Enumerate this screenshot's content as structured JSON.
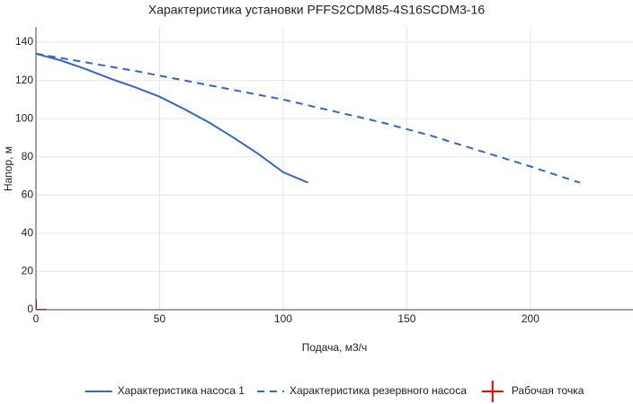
{
  "chart_data": {
    "type": "line",
    "title": "Характеристика установки PFFS2CDM85-4S16SCDM3-16",
    "x_label": "Подача, м3/ч",
    "y_label": "Напор, м",
    "xlim": [
      0,
      241.5
    ],
    "ylim": [
      0,
      148
    ],
    "xticks": [
      0,
      50,
      100,
      150,
      200
    ],
    "yticks": [
      0,
      20,
      40,
      60,
      80,
      100,
      120,
      140
    ],
    "grid": true,
    "legend": "bottom",
    "series": [
      {
        "name": "Характеристика насоса 1",
        "color": "#3366cc",
        "dash": "solid",
        "x": [
          0,
          10,
          20,
          30,
          40,
          50,
          60,
          70,
          80,
          90,
          100,
          110
        ],
        "values": [
          134,
          130.5,
          126,
          121,
          116.5,
          111.5,
          105,
          98,
          90,
          81.5,
          72,
          66.5
        ]
      },
      {
        "name": "Характеристика резервного насоса",
        "color": "#3366cc",
        "dash": "dashed",
        "x": [
          0,
          20,
          40,
          60,
          80,
          100,
          120,
          140,
          160,
          180,
          200,
          220
        ],
        "values": [
          134,
          129.5,
          125,
          120,
          115,
          110,
          104,
          98,
          91,
          83,
          75,
          66.5
        ]
      },
      {
        "name": "Рабочая точка",
        "color": "#ff0000",
        "marker": "cross",
        "x": [
          0
        ],
        "values": [
          0
        ]
      }
    ]
  }
}
